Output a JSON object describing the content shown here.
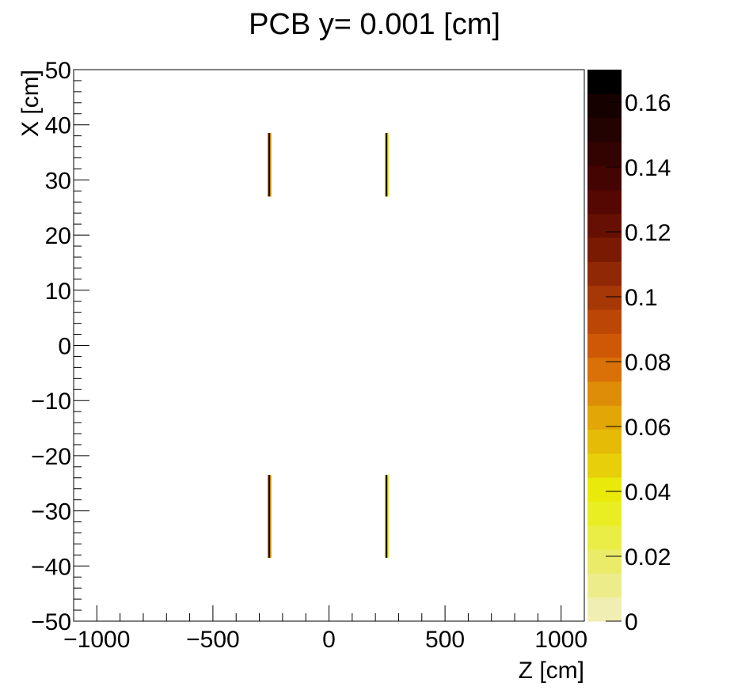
{
  "chart_data": {
    "type": "heatmap",
    "title": "PCB y=  0.001 [cm]",
    "xlabel": "Z [cm]",
    "ylabel": "X [cm]",
    "xlim": [
      -1100,
      1100
    ],
    "ylim": [
      -50,
      50
    ],
    "xticks": [
      -1000,
      -500,
      0,
      500,
      1000
    ],
    "xtick_labels": [
      "−1000",
      "−500",
      "0",
      "500",
      "1000"
    ],
    "yticks": [
      50,
      40,
      30,
      20,
      10,
      0,
      -10,
      -20,
      -30,
      -40,
      -50
    ],
    "ytick_labels": [
      "50",
      "40",
      "30",
      "20",
      "10",
      "0",
      "−10",
      "−20",
      "−30",
      "−40",
      "−50"
    ],
    "zlim": [
      0,
      0.17
    ],
    "zticks": [
      0,
      0.02,
      0.04,
      0.06,
      0.08,
      0.1,
      0.12,
      0.14,
      0.16
    ],
    "ztick_labels": [
      "0",
      "0.02",
      "0.04",
      "0.06",
      "0.08",
      "0.1",
      "0.12",
      "0.14",
      "0.16"
    ],
    "colorbar_colors": [
      "#f0eeb2",
      "#ecec8b",
      "#eaeb68",
      "#e9ed45",
      "#e9ee22",
      "#e9ea0a",
      "#e7d00a",
      "#e5bb07",
      "#e2a606",
      "#de8d08",
      "#d97108",
      "#cf5807",
      "#bc4606",
      "#a63706",
      "#902806",
      "#7a1a03",
      "#661003",
      "#550702",
      "#440402",
      "#330302",
      "#230202",
      "#160101",
      "#000000"
    ],
    "regions": [
      {
        "z": [
          -265,
          -248
        ],
        "x": [
          27,
          38.5
        ],
        "edge_color": "#d9a20c",
        "core_color": "#330302"
      },
      {
        "z": [
          240,
          257
        ],
        "x": [
          27,
          38.5
        ],
        "edge_color": "#e5e20c",
        "core_color": "#220101"
      },
      {
        "z": [
          -265,
          -248
        ],
        "x": [
          -38.5,
          -23.5
        ],
        "edge_color": "#d9a20c",
        "core_color": "#330302"
      },
      {
        "z": [
          240,
          257
        ],
        "x": [
          -38.5,
          -23.5
        ],
        "edge_color": "#e5e20c",
        "core_color": "#220101"
      }
    ],
    "grid": false,
    "legend": "colorbar-right"
  }
}
